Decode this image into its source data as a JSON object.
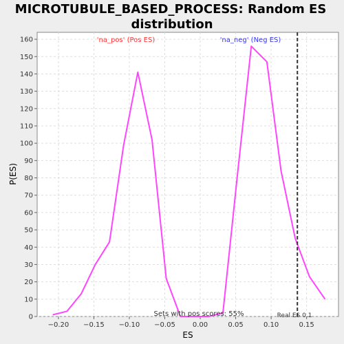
{
  "chart_data": {
    "type": "line",
    "title": "MICROTUBULE_BASED_PROCESS: Random ES distribution",
    "title_lines": [
      "MICROTUBULE_BASED_PROCESS: Random ES",
      "distribution"
    ],
    "xlabel": "ES",
    "ylabel": "P(ES)",
    "xlim": [
      -0.23,
      0.195
    ],
    "ylim": [
      0,
      164
    ],
    "x_ticks": [
      -0.2,
      -0.15,
      -0.1,
      -0.05,
      0.0,
      0.05,
      0.1,
      0.15
    ],
    "x_tick_labels": [
      "−0.20",
      "−0.15",
      "−0.10",
      "−0.05",
      "0.00",
      "0.05",
      "0.10",
      "0.15"
    ],
    "y_ticks": [
      0,
      10,
      20,
      30,
      40,
      50,
      60,
      70,
      80,
      90,
      100,
      110,
      120,
      130,
      140,
      150,
      160
    ],
    "grid": true,
    "series": [
      {
        "color": "#ff44ff",
        "x": [
          -0.208,
          -0.188,
          -0.168,
          -0.148,
          -0.128,
          -0.108,
          -0.088,
          -0.068,
          -0.048,
          -0.028,
          -0.008,
          0.012,
          0.032,
          0.052,
          0.072,
          0.094,
          0.114,
          0.134,
          0.154,
          0.176
        ],
        "y": [
          1,
          3,
          13,
          30,
          43,
          99,
          141,
          102,
          22,
          0,
          0,
          0,
          2,
          80,
          156,
          147,
          84,
          45,
          23,
          10
        ]
      }
    ],
    "real_es": 0.137,
    "annotations": {
      "pos_label": "'na_pos' (Pos ES)",
      "pos_color": "#ff3333",
      "neg_label": "'na_neg' (Neg ES)",
      "neg_color": "#3333ff",
      "sets_text": "Sets with pos scores: 55%",
      "real_es_text": "Real ES 0.1"
    }
  }
}
